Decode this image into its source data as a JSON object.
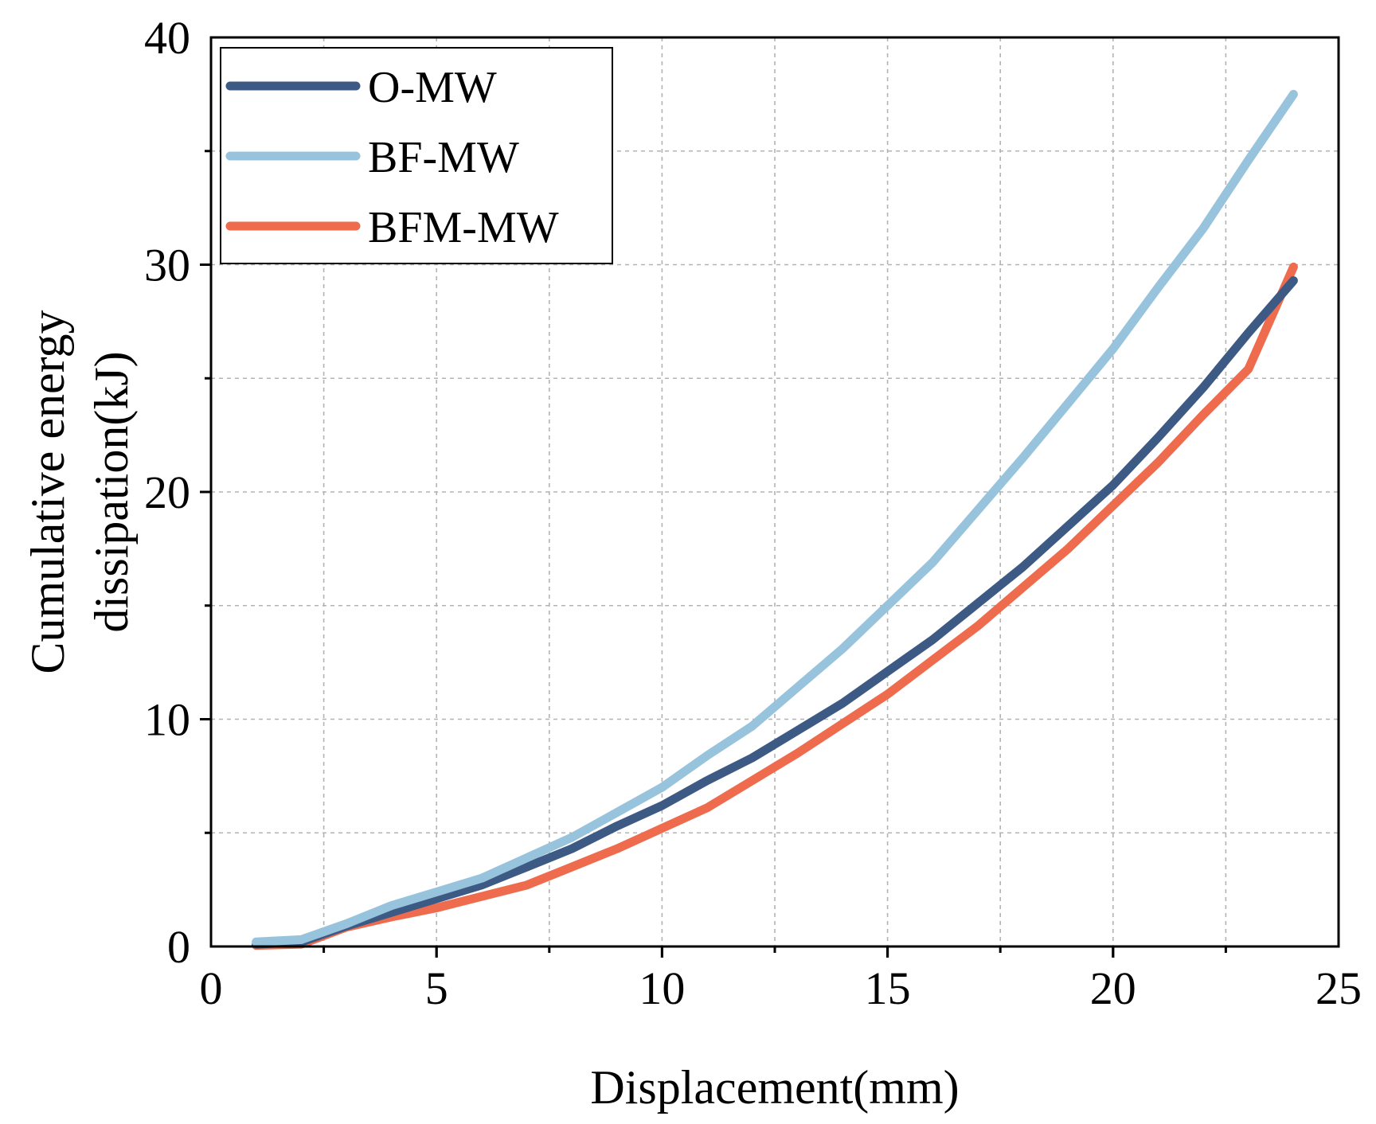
{
  "chart_data": {
    "type": "line",
    "title": "",
    "xlabel": "Displacement(mm)",
    "ylabel": [
      "Cumulative energy",
      "dissipation(kJ)"
    ],
    "xlim": [
      0,
      25
    ],
    "ylim": [
      0,
      40
    ],
    "x_ticks": [
      0,
      5,
      10,
      15,
      20,
      25
    ],
    "y_ticks": [
      0,
      10,
      20,
      30,
      40
    ],
    "x_grid": [
      2.5,
      5,
      7.5,
      10,
      12.5,
      15,
      17.5,
      20,
      22.5
    ],
    "y_grid": [
      5,
      10,
      15,
      20,
      25,
      30,
      35
    ],
    "grid": true,
    "legend_position": "top-left",
    "series": [
      {
        "name": "O-MW",
        "color": "#3d5a85",
        "x": [
          1,
          2,
          3,
          4,
          5,
          6,
          7,
          8,
          9,
          10,
          11,
          12,
          13,
          14,
          15,
          16,
          17,
          18,
          19,
          20,
          21,
          22,
          23,
          24
        ],
        "y": [
          0.1,
          0.2,
          0.9,
          1.5,
          2.1,
          2.7,
          3.5,
          4.3,
          5.3,
          6.2,
          7.3,
          8.3,
          9.5,
          10.7,
          12.1,
          13.5,
          15.1,
          16.7,
          18.5,
          20.3,
          22.4,
          24.6,
          27.0,
          29.3
        ]
      },
      {
        "name": "BF-MW",
        "color": "#97c3dd",
        "x": [
          1,
          2,
          3,
          4,
          5,
          6,
          7,
          8,
          9,
          10,
          11,
          12,
          13,
          14,
          15,
          16,
          17,
          18,
          19,
          20,
          21,
          22,
          23,
          24
        ],
        "y": [
          0.2,
          0.3,
          1.0,
          1.8,
          2.4,
          3.0,
          3.9,
          4.8,
          5.9,
          7.0,
          8.4,
          9.7,
          11.4,
          13.1,
          15.0,
          16.9,
          19.2,
          21.5,
          23.9,
          26.3,
          29.0,
          31.6,
          34.6,
          37.5
        ]
      },
      {
        "name": "BFM-MW",
        "color": "#ee6b4d",
        "x": [
          1,
          2,
          3,
          4,
          5,
          6,
          7,
          8,
          9,
          10,
          11,
          12,
          13,
          14,
          15,
          16,
          17,
          18,
          19,
          20,
          21,
          22,
          23,
          24
        ],
        "y": [
          0.05,
          0.1,
          0.85,
          1.3,
          1.7,
          2.2,
          2.7,
          3.5,
          4.3,
          5.2,
          6.1,
          7.3,
          8.5,
          9.8,
          11.1,
          12.6,
          14.1,
          15.8,
          17.5,
          19.4,
          21.3,
          23.4,
          25.4,
          29.9
        ]
      }
    ]
  }
}
